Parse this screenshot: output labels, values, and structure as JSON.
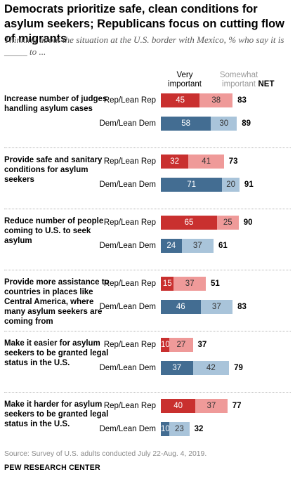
{
  "title": "Democrats prioritize safe, clean conditions for asylum seekers; Republicans focus on cutting flow of migrants",
  "subtitle": "Thinking about the situation at the U.S. border with Mexico, % who say it is _____ to ...",
  "headers": {
    "very": "Very important",
    "somewhat": "Somewhat important",
    "net": "NET"
  },
  "source": "Source: Survey of U.S. adults conducted July 22-Aug. 4, 2019.",
  "org": "PEW RESEARCH CENTER",
  "colors": {
    "rep_very": "#c9302f",
    "rep_somewhat": "#ef9a99",
    "dem_very": "#436d92",
    "dem_somewhat": "#a9c4da"
  },
  "chart_data": {
    "type": "bar",
    "orientation": "horizontal",
    "stacked": true,
    "series_names": [
      "Very important",
      "Somewhat important"
    ],
    "groups": [
      "Rep/Lean Rep",
      "Dem/Lean Dem"
    ],
    "items": [
      {
        "label": "Increase number of judges handling asylum cases",
        "rows": [
          {
            "group": "Rep/Lean Rep",
            "very": 45,
            "somewhat": 38,
            "net": 83
          },
          {
            "group": "Dem/Lean Dem",
            "very": 58,
            "somewhat": 30,
            "net": 89
          }
        ]
      },
      {
        "label": "Provide safe and sanitary conditions for asylum seekers",
        "rows": [
          {
            "group": "Rep/Lean Rep",
            "very": 32,
            "somewhat": 41,
            "net": 73
          },
          {
            "group": "Dem/Lean Dem",
            "very": 71,
            "somewhat": 20,
            "net": 91
          }
        ]
      },
      {
        "label": "Reduce number of people coming to U.S. to seek asylum",
        "rows": [
          {
            "group": "Rep/Lean Rep",
            "very": 65,
            "somewhat": 25,
            "net": 90
          },
          {
            "group": "Dem/Lean Dem",
            "very": 24,
            "somewhat": 37,
            "net": 61
          }
        ]
      },
      {
        "label": "Provide more assistance to countries in places like Central America, where many asylum seekers are coming from",
        "rows": [
          {
            "group": "Rep/Lean Rep",
            "very": 15,
            "somewhat": 37,
            "net": 51
          },
          {
            "group": "Dem/Lean Dem",
            "very": 46,
            "somewhat": 37,
            "net": 83
          }
        ]
      },
      {
        "label": "Make it easier for asylum seekers to be granted legal status in the U.S.",
        "rows": [
          {
            "group": "Rep/Lean Rep",
            "very": 10,
            "somewhat": 27,
            "net": 37
          },
          {
            "group": "Dem/Lean Dem",
            "very": 37,
            "somewhat": 42,
            "net": 79
          }
        ]
      },
      {
        "label": "Make it harder for asylum seekers to be granted legal status in the U.S.",
        "rows": [
          {
            "group": "Rep/Lean Rep",
            "very": 40,
            "somewhat": 37,
            "net": 77
          },
          {
            "group": "Dem/Lean Dem",
            "very": 10,
            "somewhat": 23,
            "net": 32
          }
        ]
      }
    ]
  }
}
